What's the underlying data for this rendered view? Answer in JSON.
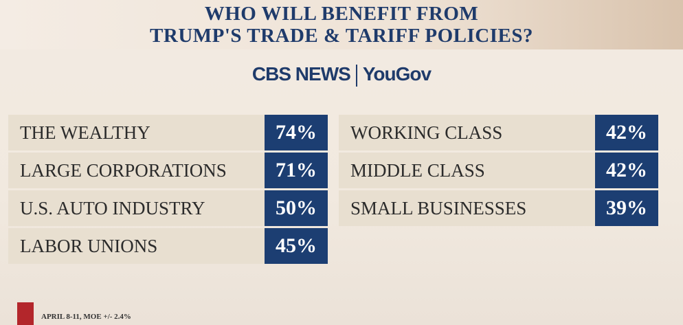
{
  "header": {
    "title_lines": [
      "WHO WILL BENEFIT FROM",
      "TRUMP'S TRADE & TARIFF POLICIES?"
    ],
    "logo_left": "CBS NEWS",
    "logo_right": "YouGov"
  },
  "table": {
    "columns": [
      [
        {
          "label": "THE WEALTHY",
          "value": "74%"
        },
        {
          "label": "LARGE CORPORATIONS",
          "value": "71%"
        },
        {
          "label": "U.S. AUTO INDUSTRY",
          "value": "50%"
        },
        {
          "label": "LABOR UNIONS",
          "value": "45%"
        }
      ],
      [
        {
          "label": "WORKING CLASS",
          "value": "42%"
        },
        {
          "label": "MIDDLE CLASS",
          "value": "42%"
        },
        {
          "label": "SMALL BUSINESSES",
          "value": "39%"
        }
      ]
    ]
  },
  "footer": {
    "note": "APRIL 8-11, MOE +/- 2.4%"
  }
}
